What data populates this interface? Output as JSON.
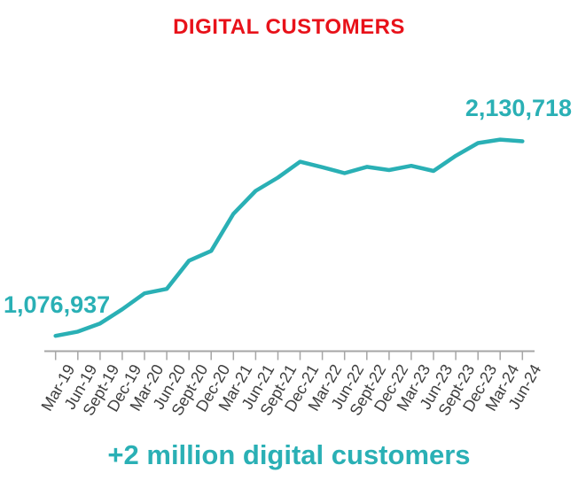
{
  "title": {
    "text": "DIGITAL CUSTOMERS",
    "color": "#e8121a"
  },
  "annotations": {
    "start_value": "1,076,937",
    "end_value": "2,130,718"
  },
  "caption": {
    "text": "+2 million digital customers",
    "color": "#2ab0b5"
  },
  "chart_data": {
    "type": "line",
    "title": "DIGITAL CUSTOMERS",
    "series_name": "Digital customers",
    "categories": [
      "Mar-19",
      "Jun-19",
      "Sept-19",
      "Dec-19",
      "Mar-20",
      "Jun-20",
      "Sept-20",
      "Dec-20",
      "Mar-21",
      "Jun-21",
      "Sept-21",
      "Dec-21",
      "Mar-22",
      "Jun-22",
      "Sept-22",
      "Dec-22",
      "Mar-23",
      "Jun-23",
      "Sept-23",
      "Dec-23",
      "Mar-24",
      "Jun-24"
    ],
    "values": [
      1076937,
      1100000,
      1144000,
      1221000,
      1307000,
      1331000,
      1484000,
      1537000,
      1738000,
      1862000,
      1934000,
      2020000,
      1990000,
      1958000,
      1992000,
      1975000,
      1998000,
      1970000,
      2052000,
      2121000,
      2140000,
      2130718
    ],
    "first_point_label": "1,076,937",
    "last_point_label": "2,130,718",
    "xlabel": "",
    "ylabel": "",
    "ylim": [
      1000000,
      2250000
    ],
    "grid": false,
    "legend": "none",
    "y_axis_visible": false,
    "line_color": "#2ab0b5",
    "axis_color": "#a6a6a6",
    "tick_label_color": "#3d3d3d"
  }
}
